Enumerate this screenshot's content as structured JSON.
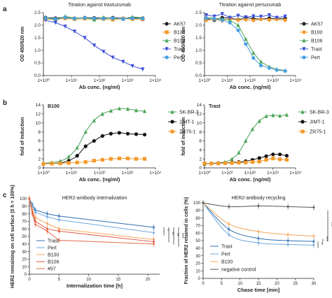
{
  "panel_letters": [
    "a",
    "b",
    "c"
  ],
  "colors": {
    "AK57": "#222222",
    "B100": "#f39a2b",
    "B106": "#4aa457",
    "Trast": "#3b4fd9",
    "Pert": "#4aa0e0",
    "SK-BR-3": "#4aa457",
    "JIMT-1": "#111111",
    "ZR75-1": "#f39a2b",
    "c_Trast": "#2e6fb0",
    "c_Pert": "#6fa8dc",
    "c_B100": "#f5a65b",
    "c_B106": "#e0503a",
    "c_57": "#e46a49",
    "c_negative": "#555555"
  },
  "chart_data": [
    {
      "id": "a-left",
      "type": "line",
      "title": "Titration against trastuzumab",
      "xlabel": "Ab conc. (ng/ml)",
      "ylabel": "OD 450/620 nm",
      "xscale": "log",
      "xlim": [
        1,
        10000
      ],
      "ylim": [
        0,
        2.5
      ],
      "xticks": [
        "1×10⁰",
        "1×10¹",
        "1×10²",
        "1×10³",
        "1×10⁴"
      ],
      "yticks": [
        "0.0",
        "0.5",
        "1.0",
        "1.5",
        "2.0",
        "2.5"
      ],
      "legend": "right",
      "x": [
        1.2,
        2.7,
        6,
        13,
        30,
        65,
        140,
        300,
        700,
        1500,
        3500
      ],
      "series": [
        {
          "name": "AK57",
          "marker": "circle",
          "values": [
            2.3,
            2.28,
            2.31,
            2.27,
            2.3,
            2.29,
            2.28,
            2.3,
            2.27,
            2.29,
            2.28
          ]
        },
        {
          "name": "B100",
          "marker": "square",
          "values": [
            2.25,
            2.22,
            2.27,
            2.24,
            2.26,
            2.23,
            2.25,
            2.22,
            2.26,
            2.24,
            2.23
          ]
        },
        {
          "name": "B106",
          "marker": "triangle",
          "values": [
            2.32,
            2.2,
            2.35,
            2.28,
            2.3,
            2.22,
            2.31,
            2.27,
            2.25,
            2.33,
            2.29
          ]
        },
        {
          "name": "Trast",
          "marker": "triangle-down",
          "values": [
            2.2,
            2.1,
            1.95,
            1.75,
            1.5,
            1.2,
            0.95,
            0.72,
            0.55,
            0.38,
            0.25
          ]
        },
        {
          "name": "Pert",
          "marker": "circle",
          "values": [
            2.28,
            2.25,
            2.3,
            2.26,
            2.29,
            2.27,
            2.26,
            2.28,
            2.25,
            2.27,
            2.26
          ]
        }
      ]
    },
    {
      "id": "a-right",
      "type": "line",
      "title": "Titration against pertuzumab",
      "xlabel": "Ab conc. (ng/ml)",
      "ylabel": "OD 450/620 nm",
      "xscale": "log",
      "xlim": [
        1,
        10000
      ],
      "ylim": [
        0,
        2.5
      ],
      "xticks": [
        "1×10⁰",
        "1×10¹",
        "1×10²",
        "1×10³",
        "1×10⁴"
      ],
      "yticks": [
        "0.0",
        "0.5",
        "1.0",
        "1.5",
        "2.0",
        "2.5"
      ],
      "legend": "right",
      "x": [
        1.2,
        2.7,
        6,
        13,
        30,
        65,
        140,
        300,
        700,
        1500,
        3500
      ],
      "series": [
        {
          "name": "AK57",
          "marker": "circle",
          "values": [
            2.25,
            2.2,
            2.3,
            2.28,
            2.22,
            2.3,
            2.26,
            2.24,
            2.28,
            2.25,
            2.27
          ]
        },
        {
          "name": "B100",
          "marker": "circle",
          "values": [
            2.2,
            2.23,
            2.18,
            2.25,
            2.2,
            2.22,
            2.19,
            2.24,
            2.21,
            2.23,
            2.2
          ]
        },
        {
          "name": "B106",
          "marker": "triangle",
          "values": [
            2.3,
            2.28,
            2.25,
            2.2,
            2.0,
            1.45,
            0.9,
            0.55,
            0.35,
            0.25,
            0.2
          ]
        },
        {
          "name": "Trast",
          "marker": "triangle-down",
          "values": [
            2.4,
            2.35,
            2.45,
            2.3,
            2.38,
            2.32,
            2.36,
            2.34,
            2.4,
            2.3,
            2.35
          ]
        },
        {
          "name": "Pert",
          "marker": "circle",
          "values": [
            2.28,
            2.25,
            2.2,
            2.1,
            1.8,
            1.25,
            0.7,
            0.4,
            0.3,
            0.22,
            0.18
          ]
        }
      ]
    },
    {
      "id": "b-left",
      "type": "line",
      "title": "B100",
      "xlabel": "Ab conc. (ng/ml)",
      "ylabel": "fold of induction",
      "xscale": "log",
      "xlim": [
        1,
        10000
      ],
      "ylim": [
        0,
        14
      ],
      "xticks": [
        "1×10⁰",
        "1×10¹",
        "1×10²",
        "1×10³",
        "1×10⁴"
      ],
      "yticks": [
        "0",
        "2",
        "4",
        "6",
        "8",
        "10",
        "12",
        "14"
      ],
      "legend": "right",
      "x": [
        1,
        2,
        4,
        8,
        16,
        32,
        64,
        128,
        256,
        512,
        1024,
        2048,
        4096
      ],
      "series": [
        {
          "name": "SK-BR-3",
          "marker": "triangle",
          "values": [
            1.0,
            1.2,
            1.5,
            2.5,
            4.5,
            8.0,
            10.5,
            12.0,
            12.7,
            13.2,
            13.1,
            12.8,
            12.6
          ]
        },
        {
          "name": "JIMT-1",
          "marker": "circle",
          "values": [
            0.9,
            1.0,
            1.1,
            1.6,
            2.7,
            4.8,
            6.0,
            7.1,
            7.6,
            7.8,
            7.6,
            7.5,
            7.4
          ]
        },
        {
          "name": "ZR75-1",
          "marker": "square",
          "values": [
            0.9,
            0.95,
            1.0,
            1.1,
            1.2,
            1.3,
            1.6,
            1.8,
            2.0,
            2.1,
            2.1,
            2.0,
            2.0
          ]
        }
      ]
    },
    {
      "id": "b-right",
      "type": "line",
      "title": "Trast",
      "xlabel": "Ab conc. (ng/ml)",
      "ylabel": "fold of induction",
      "xscale": "log",
      "xlim": [
        1,
        10000
      ],
      "ylim": [
        0,
        14
      ],
      "xticks": [
        "1×10⁰",
        "1×10¹",
        "1×10²",
        "1×10³",
        "1×10⁴"
      ],
      "yticks": [
        "0",
        "2",
        "4",
        "6",
        "8",
        "10",
        "12",
        "14"
      ],
      "legend": "right",
      "x": [
        1,
        2,
        4,
        8,
        16,
        32,
        64,
        128,
        256,
        512,
        1024,
        2048,
        4096
      ],
      "series": [
        {
          "name": "SK-BR-3",
          "marker": "triangle",
          "values": [
            0.9,
            1.0,
            1.1,
            1.3,
            2.0,
            3.4,
            6.0,
            8.6,
            10.4,
            11.5,
            11.7,
            11.6,
            11.8
          ]
        },
        {
          "name": "JIMT-1",
          "marker": "circle",
          "values": [
            0.95,
            1.0,
            1.05,
            1.1,
            1.2,
            1.3,
            1.5,
            1.8,
            2.2,
            2.6,
            3.0,
            3.0,
            2.7
          ]
        },
        {
          "name": "ZR75-1",
          "marker": "square",
          "values": [
            1.0,
            0.95,
            1.0,
            1.05,
            1.1,
            1.15,
            1.2,
            1.3,
            1.4,
            1.8,
            2.1,
            1.9,
            1.8
          ]
        }
      ]
    },
    {
      "id": "c-left",
      "type": "line",
      "title": "HER2-antibody internalization",
      "xlabel": "Internalization time [h]",
      "ylabel": "HER2 remaining on cell surface (0 h = 100%)",
      "xlim": [
        0,
        22
      ],
      "ylim": [
        0,
        100
      ],
      "xticks": [
        "0",
        "5",
        "10",
        "15",
        "20"
      ],
      "yticks": [
        "0",
        "10",
        "20",
        "30",
        "40",
        "50",
        "60",
        "70",
        "80",
        "90",
        "100"
      ],
      "legend": "bottom-left",
      "annotations": [
        "*",
        "**",
        "**",
        "***"
      ],
      "x": [
        0,
        0.5,
        1,
        3,
        5,
        21
      ],
      "series": [
        {
          "name": "Trast",
          "values": [
            100,
            92,
            85,
            80,
            77,
            62
          ]
        },
        {
          "name": "Pert",
          "values": [
            100,
            90,
            82,
            76,
            72,
            55
          ]
        },
        {
          "name": "B100",
          "values": [
            100,
            85,
            75,
            67,
            60,
            46
          ]
        },
        {
          "name": "B106",
          "values": [
            100,
            82,
            70,
            60,
            57,
            43
          ]
        },
        {
          "name": "#57",
          "values": [
            100,
            80,
            66,
            57,
            45,
            40
          ]
        }
      ]
    },
    {
      "id": "c-right",
      "type": "line",
      "title": "HER2-antibody recycling",
      "xlabel": "Chase time [min]",
      "ylabel": "Fraction of HER2 retained in cells (%)",
      "xlim": [
        0,
        30
      ],
      "ylim": [
        0,
        100
      ],
      "xticks": [
        "0",
        "5",
        "10",
        "15",
        "20",
        "25",
        "30"
      ],
      "yticks": [
        "0",
        "10",
        "20",
        "30",
        "40",
        "50",
        "60",
        "70",
        "80",
        "90",
        "100"
      ],
      "legend": "bottom-left",
      "annotations": [
        "**",
        "***",
        "***"
      ],
      "x": [
        0,
        7,
        15,
        23,
        30
      ],
      "series": [
        {
          "name": "Trast",
          "values": [
            100,
            65,
            53,
            50,
            49
          ]
        },
        {
          "name": "Pert",
          "values": [
            100,
            58,
            47,
            45,
            44
          ]
        },
        {
          "name": "B100",
          "values": [
            100,
            72,
            62,
            58,
            56
          ]
        },
        {
          "name": "negative control",
          "values": [
            100,
            95,
            96,
            95,
            94
          ]
        }
      ]
    }
  ]
}
